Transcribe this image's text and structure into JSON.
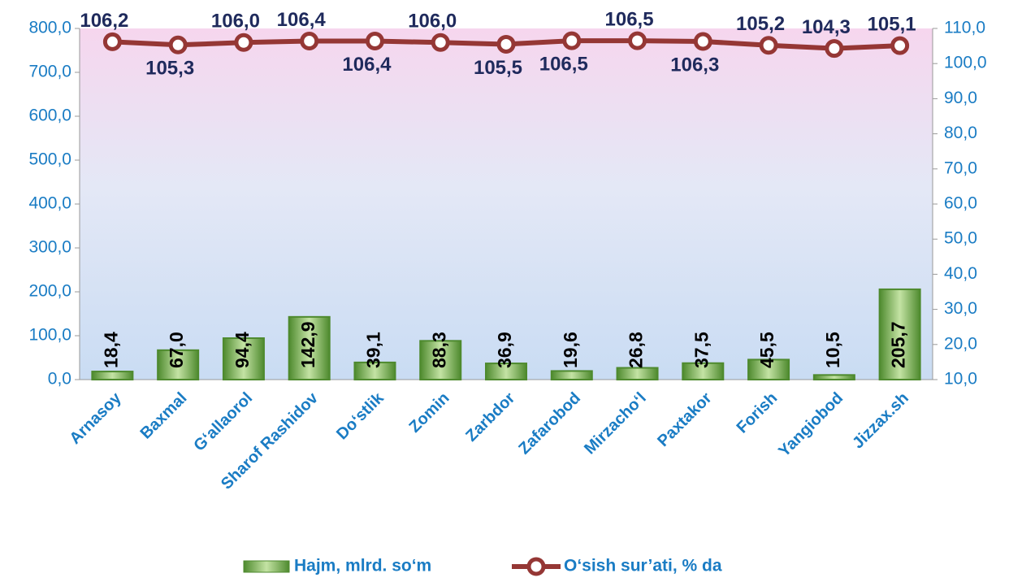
{
  "chart_data": {
    "type": "bar",
    "categories": [
      "Arnasoy",
      "Baxmal",
      "G‘allaorol",
      "Sharof Rashidov",
      "Do‘stlik",
      "Zomin",
      "Zarbdor",
      "Zafarobod",
      "Mirzacho‘l",
      "Paxtakor",
      "Forish",
      "Yangiobod",
      "Jizzax.sh"
    ],
    "series": [
      {
        "name": "Hajm, mlrd. so‘m",
        "type": "bar",
        "color": "#4e8a2e",
        "values": [
          18.4,
          67.0,
          94.4,
          142.9,
          39.1,
          88.3,
          36.9,
          19.6,
          26.8,
          37.5,
          45.5,
          10.5,
          205.7
        ],
        "value_labels": [
          "18,4",
          "67,0",
          "94,4",
          "142,9",
          "39,1",
          "88,3",
          "36,9",
          "19,6",
          "26,8",
          "37,5",
          "45,5",
          "10,5",
          "205,7"
        ]
      },
      {
        "name": "O‘sish sur’ati, % da",
        "type": "line",
        "axis": "y2",
        "color": "#953735",
        "values": [
          106.2,
          105.3,
          106.0,
          106.4,
          106.4,
          106.0,
          105.5,
          106.5,
          106.5,
          106.3,
          105.2,
          104.3,
          105.1
        ],
        "value_labels": [
          "106,2",
          "105,3",
          "106,0",
          "106,4",
          "106,4",
          "106,0",
          "105,5",
          "106,5",
          "106,5",
          "106,3",
          "105,2",
          "104,3",
          "105,1"
        ]
      }
    ],
    "ylim": [
      0,
      800
    ],
    "yticks": [
      {
        "value": 0,
        "label": "0,0"
      },
      {
        "value": 100,
        "label": "100,0"
      },
      {
        "value": 200,
        "label": "200,0"
      },
      {
        "value": 300,
        "label": "300,0"
      },
      {
        "value": 400,
        "label": "400,0"
      },
      {
        "value": 500,
        "label": "500,0"
      },
      {
        "value": 600,
        "label": "600,0"
      },
      {
        "value": 700,
        "label": "700,0"
      },
      {
        "value": 800,
        "label": "800,0"
      }
    ],
    "y2lim": [
      10,
      110
    ],
    "y2ticks": [
      {
        "value": 10,
        "label": "10,0"
      },
      {
        "value": 20,
        "label": "20,0"
      },
      {
        "value": 30,
        "label": "30,0"
      },
      {
        "value": 40,
        "label": "40,0"
      },
      {
        "value": 50,
        "label": "50,0"
      },
      {
        "value": 60,
        "label": "60,0"
      },
      {
        "value": 70,
        "label": "70,0"
      },
      {
        "value": 80,
        "label": "80,0"
      },
      {
        "value": 90,
        "label": "90,0"
      },
      {
        "value": 100,
        "label": "100,0"
      },
      {
        "value": 110,
        "label": "110,0"
      }
    ],
    "legend": "bottom"
  }
}
